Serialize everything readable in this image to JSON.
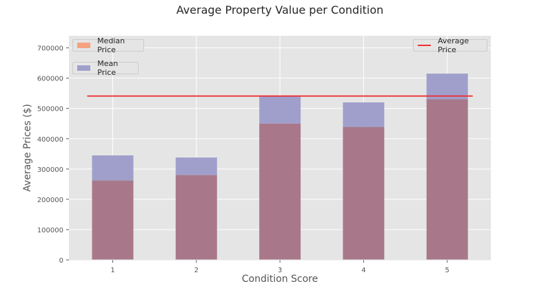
{
  "chart_data": {
    "type": "bar",
    "title": "Average Property Value per Condition",
    "xlabel": "Condition Score",
    "ylabel": "Average Prices ($)",
    "categories": [
      "1",
      "2",
      "3",
      "4",
      "5"
    ],
    "ylim": [
      0,
      740000
    ],
    "yticks": [
      0,
      100000,
      200000,
      300000,
      400000,
      500000,
      600000,
      700000
    ],
    "grid": true,
    "series": [
      {
        "name": "Mean Price",
        "values": [
          345000,
          338000,
          542000,
          520000,
          615000
        ],
        "color": "#9999cc"
      },
      {
        "name": "Median Price",
        "values": [
          262000,
          280000,
          450000,
          439000,
          530000
        ],
        "color": "#ff8c60"
      }
    ],
    "overlap_color": "#a8788a",
    "reference_line": {
      "name": "Average Price",
      "value": 541000,
      "color": "#ee3030"
    },
    "legend": [
      {
        "label": "Median Price",
        "placement": "top-left"
      },
      {
        "label": "Mean Price",
        "placement": "upper-left"
      },
      {
        "label": "Average Price",
        "placement": "top-right"
      }
    ],
    "colors": {
      "plot_bg": "#e5e5e5",
      "grid": "#ffffff",
      "text": "#555555"
    }
  }
}
